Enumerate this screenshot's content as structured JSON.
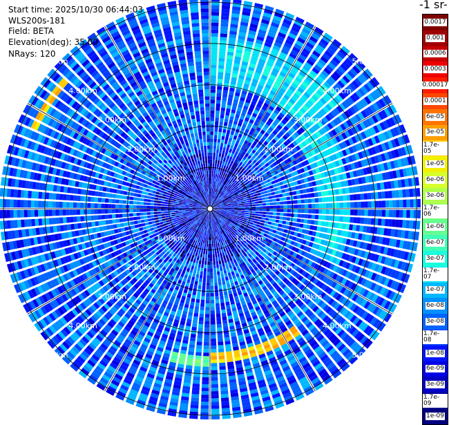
{
  "info": {
    "start_time": "Start time: 2025/10/30 06:44:03",
    "instrument": "WLS200s-181",
    "field": "Field: BETA",
    "elevation": "Elevation(deg): 35.00",
    "nrays": "NRays: 120"
  },
  "legend": {
    "title": "-1 sr-",
    "levels": [
      "0.0017",
      "0.001",
      "0.0006",
      "0.0003",
      "0.00017",
      "0.0001",
      "6e-05",
      "3e-05",
      "1.7e-05",
      "1e-05",
      "6e-06",
      "3e-06",
      "1.7e-06",
      "1e-06",
      "6e-07",
      "3e-07",
      "1.7e-07",
      "1e-07",
      "6e-08",
      "3e-08",
      "1.7e-08",
      "1e-08",
      "6e-09",
      "3e-09",
      "1.7e-09",
      "1e-09"
    ],
    "colors": [
      "#7f0000",
      "#a10000",
      "#c80000",
      "#f00000",
      "#ff1a00",
      "#ff4700",
      "#ff7300",
      "#ff9f00",
      "#ffcc00",
      "#f2f000",
      "#d6ff2b",
      "#b0ff4d",
      "#8cff70",
      "#66ff91",
      "#40ffb6",
      "#19ffdc",
      "#00e4f8",
      "#00b8ff",
      "#0090ff",
      "#0064ff",
      "#003cff",
      "#0014ff",
      "#0000e6",
      "#0000c4",
      "#00009f",
      "#00007f"
    ]
  },
  "chart_data": {
    "type": "heatmap",
    "projection": "polar (PPI scan)",
    "quantity": "BETA",
    "range_rings_km": [
      1,
      2,
      3,
      4,
      5
    ],
    "range_labels": [
      "1.00km",
      "2.00km",
      "3.00km",
      "4.00km",
      "5.00km"
    ],
    "max_range_km": 5.1,
    "n_rays": 120,
    "color_scale": "log",
    "value_range": [
      1e-09,
      0.0017
    ],
    "typical_background_value": 3e-08,
    "features": [
      {
        "range_km": [
          4.6,
          4.8
        ],
        "azimuth_deg": [
          295,
          312
        ],
        "value": 1.7e-05
      },
      {
        "range_km": [
          3.0,
          4.2
        ],
        "azimuth_deg": [
          0,
          50
        ],
        "value": 1.7e-07
      },
      {
        "range_km": [
          2.6,
          3.4
        ],
        "azimuth_deg": [
          50,
          115
        ],
        "value": 1.7e-07
      },
      {
        "range_km": [
          3.5,
          3.7
        ],
        "azimuth_deg": [
          145,
          180
        ],
        "value": 1.7e-05
      },
      {
        "range_km": [
          3.6,
          3.8
        ],
        "azimuth_deg": [
          180,
          195
        ],
        "value": 1e-06
      }
    ]
  }
}
